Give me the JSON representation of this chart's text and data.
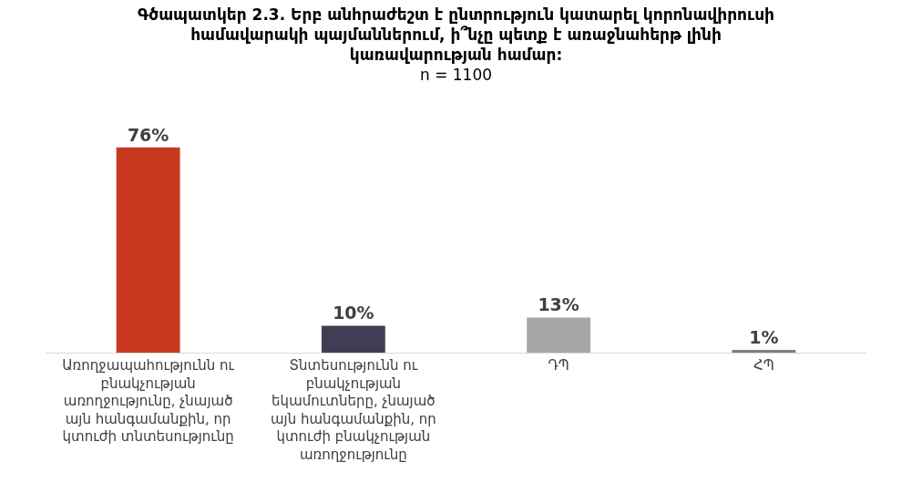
{
  "chart_data": {
    "type": "bar",
    "title": "Գծապատկեր 2.3. Երբ անհրաժեշտ է ընտրություն կատարել կորոնավիրուսի համավարակի պայմաններում, ի՞նչը պետք է առաջնահերթ լինի կառավարության համար:",
    "subtitle": "n = 1100",
    "categories": [
      "Առողջապահությունն ու բնակչության առողջությունը, չնայած այն հանգամանքին, որ կտուժի տնտեսությունը",
      "Տնտեսությունն ու բնակչության եկամուտները, չնայած այն հանգամանքին, որ կտուժի բնակչության առողջությունը",
      "ԴՊ",
      "ՀՊ"
    ],
    "values": [
      76,
      10,
      13,
      1
    ],
    "value_labels": [
      "76%",
      "10%",
      "13%",
      "1%"
    ],
    "colors": [
      "#c8381e",
      "#403d54",
      "#a6a6a6",
      "#7f7f7f"
    ]
  }
}
